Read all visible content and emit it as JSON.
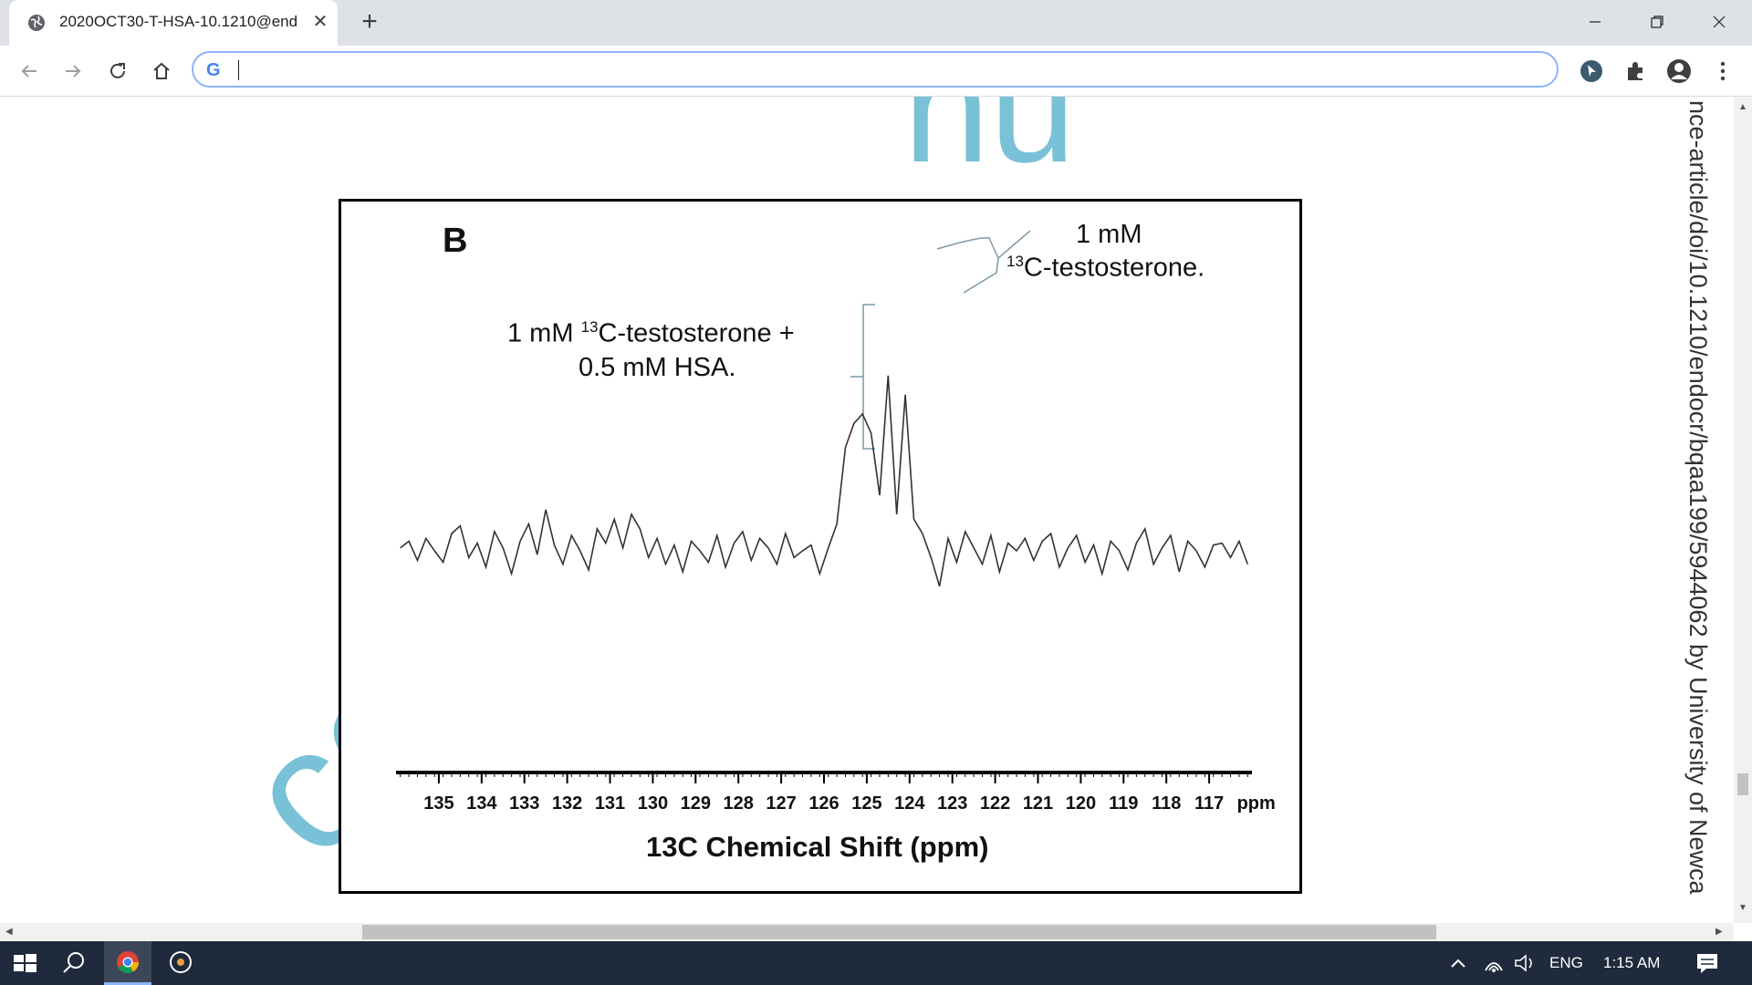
{
  "browser": {
    "tab_title": "2020OCT30-T-HSA-10.1210@end",
    "new_tab_symbol": "+",
    "close_symbol": "✕",
    "address_value": "",
    "window_controls": [
      "minimize-icon",
      "restore-icon",
      "close-icon"
    ]
  },
  "page": {
    "side_watermark": "nce-article/doi/10.1210/endocr/bqaa199/5944062 by University of Newca",
    "overlay_watermark_top": "nu",
    "overlay_watermark_bottom": "cc"
  },
  "figure": {
    "panel_label": "B",
    "label_free_line1": "1 mM",
    "label_free_sup": "13",
    "label_free_line2": "C-testosterone.",
    "label_complex_prefix": "1 mM ",
    "label_complex_sup": "13",
    "label_complex_line1": "C-testosterone +",
    "label_complex_line2": "0.5 mM HSA.",
    "xaxis_title": "13C Chemical Shift (ppm)",
    "tick_labels": [
      "135",
      "134",
      "133",
      "132",
      "131",
      "130",
      "129",
      "128",
      "127",
      "126",
      "125",
      "124",
      "123",
      "122",
      "121",
      "120",
      "119",
      "118",
      "117",
      "ppm"
    ]
  },
  "chart_data": {
    "type": "line",
    "title": "",
    "xlabel": "13C Chemical Shift (ppm)",
    "ylabel": "",
    "x_reversed": true,
    "xlim": [
      136,
      116
    ],
    "x_ticks": [
      135,
      134,
      133,
      132,
      131,
      130,
      129,
      128,
      127,
      126,
      125,
      124,
      123,
      122,
      121,
      120,
      119,
      118,
      117
    ],
    "series": [
      {
        "name": "",
        "x": [
          135.9,
          135.7,
          135.5,
          135.3,
          135.1,
          134.9,
          134.7,
          134.5,
          134.3,
          134.1,
          133.9,
          133.7,
          133.5,
          133.3,
          133.1,
          132.9,
          132.7,
          132.5,
          132.3,
          132.1,
          131.9,
          131.7,
          131.5,
          131.3,
          131.1,
          130.9,
          130.7,
          130.5,
          130.3,
          130.1,
          129.9,
          129.7,
          129.5,
          129.3,
          129.1,
          128.9,
          128.7,
          128.5,
          128.3,
          128.1,
          127.9,
          127.7,
          127.5,
          127.3,
          127.1,
          126.9,
          126.7,
          126.5,
          126.3,
          126.1,
          125.9,
          125.7,
          125.5,
          125.3,
          125.1,
          124.9,
          124.7,
          124.5,
          124.3,
          124.1,
          123.9,
          123.7,
          123.5,
          123.3,
          123.1,
          122.9,
          122.7,
          122.5,
          122.3,
          122.1,
          121.9,
          121.7,
          121.5,
          121.3,
          121.1,
          120.9,
          120.7,
          120.5,
          120.3,
          120.1,
          119.9,
          119.7,
          119.5,
          119.3,
          119.1,
          118.9,
          118.7,
          118.5,
          118.3,
          118.1,
          117.9,
          117.7,
          117.5,
          117.3,
          117.1,
          116.9,
          116.7,
          116.5,
          116.3,
          116.1
        ],
        "y": [
          0.05,
          0.12,
          -0.08,
          0.15,
          0.02,
          -0.1,
          0.2,
          0.28,
          -0.05,
          0.1,
          -0.15,
          0.22,
          0.05,
          -0.22,
          0.12,
          0.3,
          -0.02,
          0.45,
          0.08,
          -0.12,
          0.18,
          0.02,
          -0.18,
          0.25,
          0.1,
          0.35,
          0.05,
          0.4,
          0.25,
          -0.05,
          0.15,
          -0.12,
          0.08,
          -0.2,
          0.12,
          0.02,
          -0.1,
          0.18,
          -0.15,
          0.1,
          0.22,
          -0.08,
          0.15,
          0.05,
          -0.12,
          0.2,
          -0.05,
          0.02,
          0.08,
          -0.22,
          0.05,
          0.3,
          1.1,
          1.35,
          1.45,
          1.25,
          0.6,
          1.85,
          0.4,
          1.65,
          0.35,
          0.2,
          -0.05,
          -0.35,
          0.15,
          -0.1,
          0.22,
          0.05,
          -0.12,
          0.18,
          -0.2,
          0.1,
          0.02,
          0.15,
          -0.08,
          0.12,
          0.2,
          -0.15,
          0.05,
          0.18,
          -0.1,
          0.08,
          -0.22,
          0.12,
          0.02,
          -0.18,
          0.1,
          0.25,
          -0.12,
          0.05,
          0.18,
          -0.2,
          0.12,
          0.02,
          -0.15,
          0.08,
          0.1,
          -0.05,
          0.12,
          -0.12
        ]
      }
    ]
  }
}
